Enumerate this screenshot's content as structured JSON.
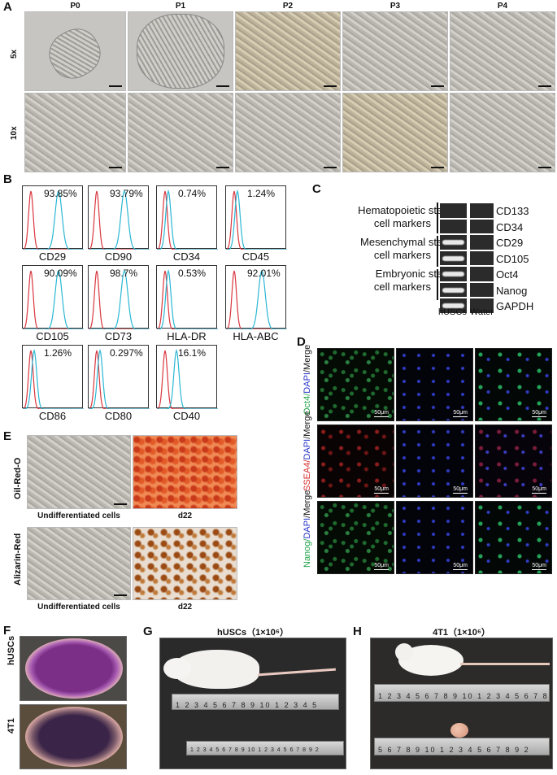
{
  "panels": {
    "A": "A",
    "B": "B",
    "C": "C",
    "D": "D",
    "E": "E",
    "F": "F",
    "G": "G",
    "H": "H"
  },
  "panelA": {
    "columns": [
      "P0",
      "P1",
      "P2",
      "P3",
      "P4"
    ],
    "rows": [
      "5x",
      "10x"
    ]
  },
  "panelB": {
    "plots": [
      {
        "marker": "CD29",
        "percent": "93.85%"
      },
      {
        "marker": "CD90",
        "percent": "93.79%"
      },
      {
        "marker": "CD34",
        "percent": "0.74%"
      },
      {
        "marker": "CD45",
        "percent": "1.24%"
      },
      {
        "marker": "CD105",
        "percent": "90.09%"
      },
      {
        "marker": "CD73",
        "percent": "98.7%"
      },
      {
        "marker": "HLA-DR",
        "percent": "0.53%"
      },
      {
        "marker": "HLA-ABC",
        "percent": "92.01%"
      },
      {
        "marker": "CD86",
        "percent": "1.26%"
      },
      {
        "marker": "CD80",
        "percent": "0.297%"
      },
      {
        "marker": "CD40",
        "percent": "16.1%"
      }
    ],
    "colors": {
      "control": "#d9363e",
      "sample": "#2bb7d3"
    }
  },
  "panelC": {
    "groups": [
      {
        "line1": "Hematopoietic stem",
        "line2": "cell markers"
      },
      {
        "line1": "Mesenchymal stem",
        "line2": "cell markers"
      },
      {
        "line1": "Embryonic stem",
        "line2": "cell markers"
      }
    ],
    "genes": [
      "CD133",
      "CD34",
      "CD29",
      "CD105",
      "Oct4",
      "Nanog",
      "GAPDH"
    ],
    "lanes": [
      "hUSCs",
      "Water"
    ]
  },
  "panelD": {
    "rows": [
      {
        "marker": "Oct4/",
        "rest": "DAPI/Merge",
        "color": "#22a34a"
      },
      {
        "marker": "SSEA4/",
        "rest": "DAPI/Merge",
        "color": "#d62b2b"
      },
      {
        "marker": "Nanog/",
        "rest": "DAPI/Merge",
        "color": "#22a34a"
      }
    ],
    "scale": "50μm"
  },
  "panelE": {
    "rows": [
      "Oil-Red-O",
      "Alizarin-Red"
    ],
    "captions": [
      "Undifferentiated cells",
      "d22"
    ]
  },
  "panelF": {
    "rows": [
      "hUSCs",
      "4T1"
    ]
  },
  "panelG": {
    "title": "hUSCs（1×10⁶）",
    "ruler1": "1 2 3 4 5 6 7 8 9 10 1 2 3 4 5",
    "ruler2": "1 2 3 4 5 6 7 8 9 10 1 2 3 4 5 6 7 8 9 2"
  },
  "panelH": {
    "title": "4T1（1×10⁶）",
    "ruler1": "1 2 3 4 5 6 7 8 9 10 1 2 3 4 5 6 7 8",
    "ruler2": "5 6 7 8 9 10 1 2 3 4 5 6 7 8 9 2"
  }
}
